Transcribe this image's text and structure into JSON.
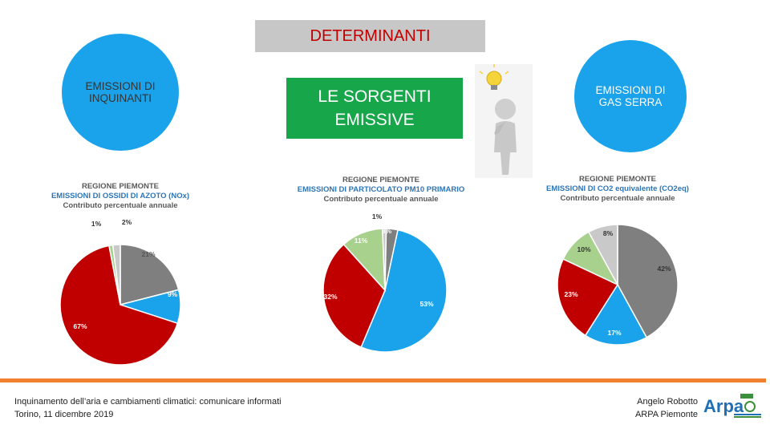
{
  "header": {
    "title": "DETERMINANTI",
    "subtitle_line1": "LE SORGENTI",
    "subtitle_line2": "EMISSIVE"
  },
  "bubbles": {
    "left_line1": "EMISSIONI  DI",
    "left_line2": "INQUINANTI",
    "right_line1": "EMISSIONI  DI",
    "right_line2": "GAS SERRA"
  },
  "colors": {
    "gray": "#7f7f7f",
    "blue": "#1aa3ea",
    "red": "#c00000",
    "green": "#a9d18e",
    "lightgray": "#c9c9c9",
    "orange": "#f07f30"
  },
  "chart_data": [
    {
      "type": "pie",
      "title": "REGIONE PIEMONTE",
      "subtitle": "EMISSIONI DI OSSIDI DI AZOTO (NOx)",
      "caption": "Contributo percentuale annuale",
      "slices": [
        {
          "label": "21%",
          "value": 21,
          "color": "#7f7f7f"
        },
        {
          "label": "9%",
          "value": 9,
          "color": "#1aa3ea"
        },
        {
          "label": "67%",
          "value": 67,
          "color": "#c00000"
        },
        {
          "label": "1%",
          "value": 1,
          "color": "#a9d18e"
        },
        {
          "label": "2%",
          "value": 2,
          "color": "#c9c9c9"
        }
      ]
    },
    {
      "type": "pie",
      "title": "REGIONE PIEMONTE",
      "subtitle": "EMISSIONI DI PARTICOLATO PM10 PRIMARIO",
      "caption": "Contributo percentuale annuale",
      "slices": [
        {
          "label": "53%",
          "value": 53,
          "color": "#1aa3ea"
        },
        {
          "label": "32%",
          "value": 32,
          "color": "#c00000"
        },
        {
          "label": "11%",
          "value": 11,
          "color": "#a9d18e"
        },
        {
          "label": "1%",
          "value": 1,
          "color": "#c9c9c9"
        },
        {
          "label": "3%",
          "value": 3,
          "color": "#7f7f7f"
        }
      ]
    },
    {
      "type": "pie",
      "title": "REGIONE PIEMONTE",
      "subtitle": "EMISSIONI DI CO2 equivalente (CO2eq)",
      "caption": "Contributo percentuale annuale",
      "slices": [
        {
          "label": "42%",
          "value": 42,
          "color": "#7f7f7f"
        },
        {
          "label": "17%",
          "value": 17,
          "color": "#1aa3ea"
        },
        {
          "label": "23%",
          "value": 23,
          "color": "#c00000"
        },
        {
          "label": "10%",
          "value": 10,
          "color": "#a9d18e"
        },
        {
          "label": "8%",
          "value": 8,
          "color": "#c9c9c9"
        }
      ]
    }
  ],
  "footer": {
    "left_line1": "Inquinamento dell’aria e cambiamenti climatici: comunicare informati",
    "left_line2": "Torino, 11 dicembre 2019",
    "right_line1": "Angelo Robotto",
    "right_line2": "ARPA Piemonte",
    "logo_text": "Arpa"
  }
}
